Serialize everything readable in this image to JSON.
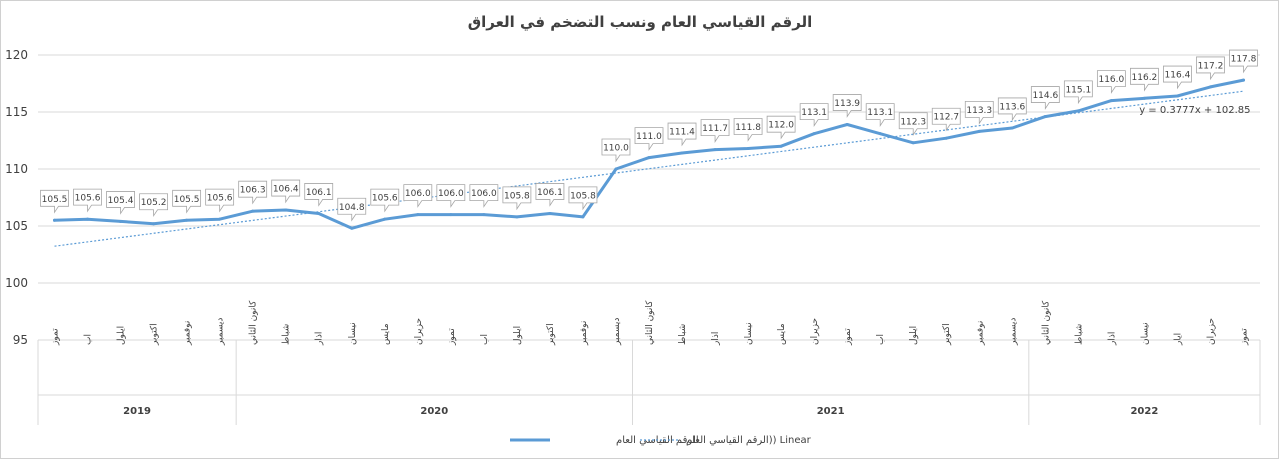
{
  "chart_data": {
    "type": "line",
    "title": "الرقم القياسي العام ونسب التضخم في العراق",
    "ylim": [
      95,
      120
    ],
    "yticks": [
      95,
      100,
      105,
      110,
      115,
      120
    ],
    "grid": "horizontal",
    "legend_position": "bottom",
    "categories": [
      "تموز",
      "اب",
      "ايلول",
      "اكتوبر",
      "نوفمبر",
      "ديسمبر",
      "كانون الثاني",
      "شباط",
      "اذار",
      "نيسان",
      "مايس",
      "حزيران",
      "تموز",
      "اب",
      "ايلول",
      "اكتوبر",
      "نوفمبر",
      "ديسمبر",
      "كانون الثاني",
      "شباط",
      "اذار",
      "نيسان",
      "مايس",
      "حزيران",
      "تموز",
      "اب",
      "ايلول",
      "اكتوبر",
      "نوفمبر",
      "ديسمبر",
      "كانون الثاني",
      "شباط",
      "اذار",
      "نيسان",
      "ايار",
      "حزيران",
      "تموز"
    ],
    "year_groups": [
      {
        "label": "2019",
        "count": 6
      },
      {
        "label": "2020",
        "count": 12
      },
      {
        "label": "2021",
        "count": 12
      },
      {
        "label": "2022",
        "count": 7
      }
    ],
    "series": [
      {
        "name": "الرقم القياسي العام",
        "color": "#5b9bd5",
        "values": [
          105.5,
          105.6,
          105.4,
          105.2,
          105.5,
          105.6,
          106.3,
          106.4,
          106.1,
          104.8,
          105.6,
          106.0,
          106.0,
          106.0,
          105.8,
          106.1,
          105.8,
          110.0,
          111.0,
          111.4,
          111.7,
          111.8,
          112.0,
          113.1,
          113.9,
          113.1,
          112.3,
          112.7,
          113.3,
          113.6,
          114.6,
          115.1,
          116.0,
          116.2,
          116.4,
          117.2,
          117.8
        ]
      }
    ],
    "trendline": {
      "name": "Linear (الرقم القياسي العام)",
      "legend_label": "الرقم القياسي العام)) Linear",
      "slope": 0.3777,
      "intercept": 102.85,
      "equation": "y = 0.3777x + 102.85",
      "color": "#5b9bd5"
    }
  }
}
